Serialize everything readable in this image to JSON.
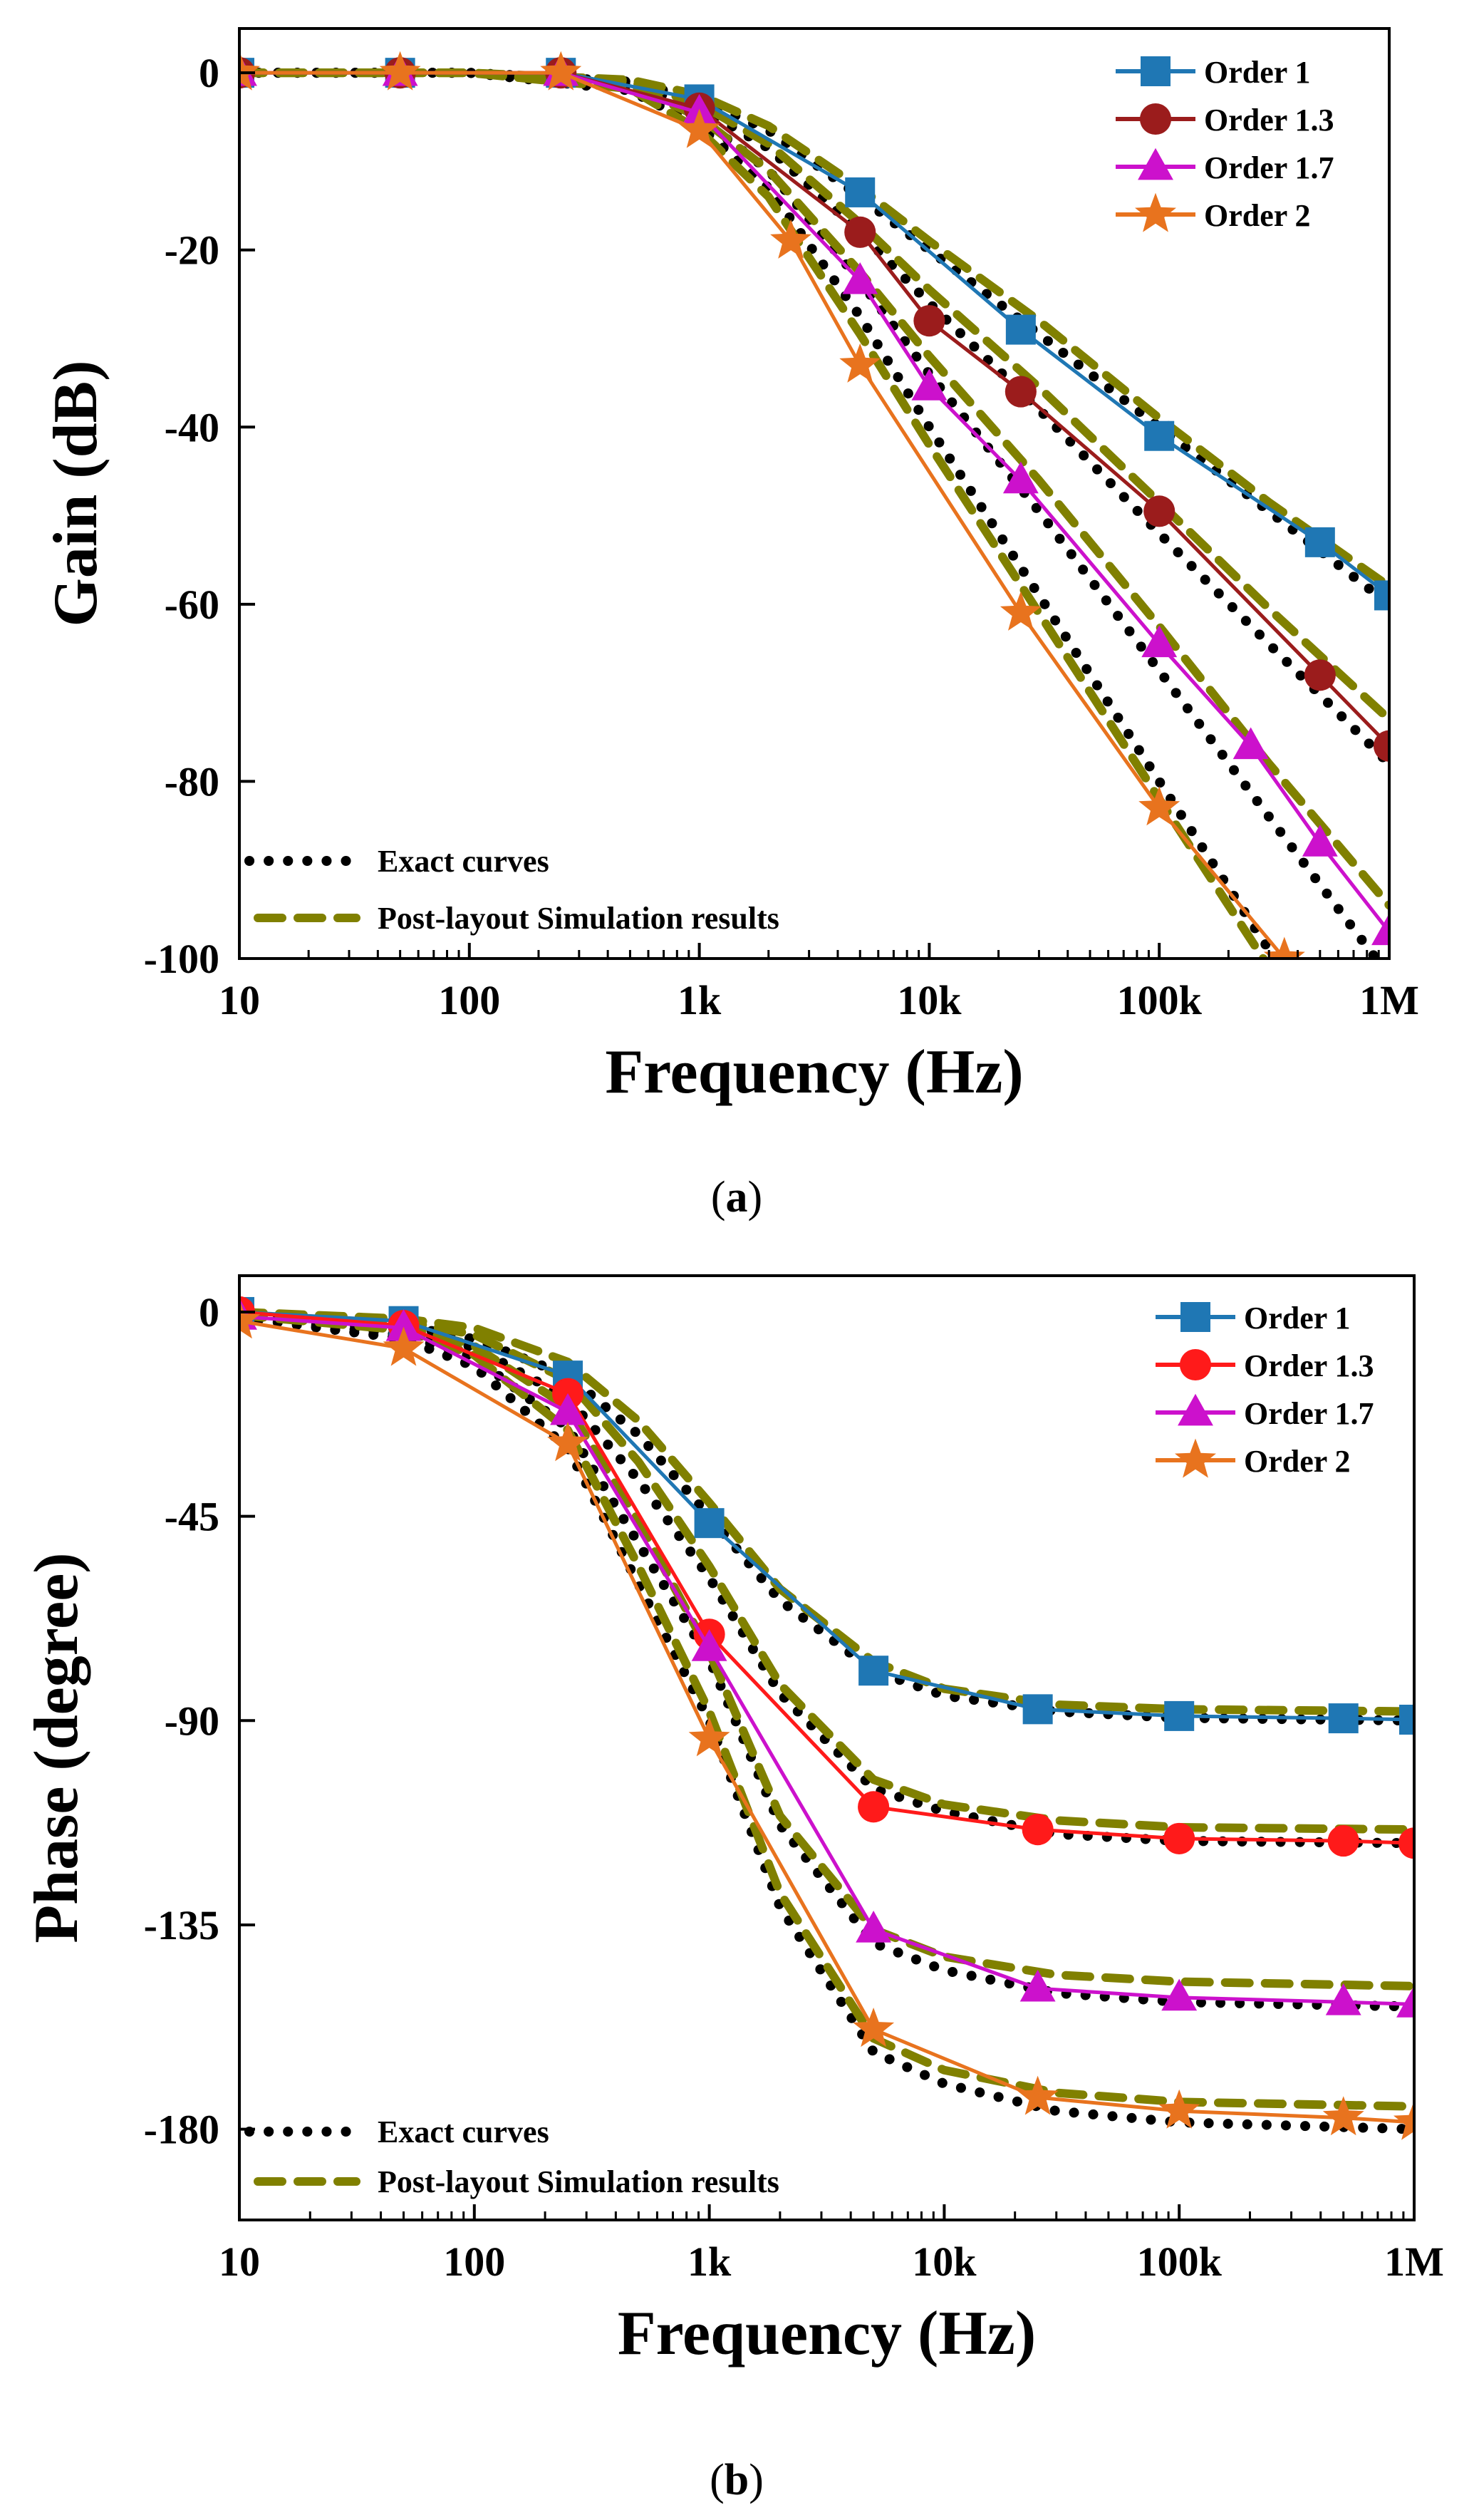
{
  "figure": {
    "caption_a_open": "(",
    "caption_a_letter": "a",
    "caption_a_close": ")",
    "caption_b_open": "(",
    "caption_b_letter": "b",
    "caption_b_close": ")"
  },
  "chart_data": [
    {
      "type": "line",
      "panel": "a",
      "xlabel": "Frequency (Hz)",
      "ylabel": "Gain (dB)",
      "xscale": "log",
      "xlim": [
        10,
        1000000
      ],
      "ylim": [
        -100,
        5
      ],
      "xticks": [
        {
          "value": 10,
          "label": "10"
        },
        {
          "value": 100,
          "label": "100"
        },
        {
          "value": 1000,
          "label": "1k"
        },
        {
          "value": 10000,
          "label": "10k"
        },
        {
          "value": 100000,
          "label": "100k"
        },
        {
          "value": 1000000,
          "label": "1M"
        }
      ],
      "yticks": [
        {
          "value": 0,
          "label": "0"
        },
        {
          "value": -20,
          "label": "-20"
        },
        {
          "value": -40,
          "label": "-40"
        },
        {
          "value": -60,
          "label": "-60"
        },
        {
          "value": -80,
          "label": "-80"
        },
        {
          "value": -100,
          "label": "-100"
        }
      ],
      "legend_position": "top-right",
      "legend2_position": "bottom-left",
      "series": [
        {
          "name": "Order 1",
          "color": "#1f77b4",
          "marker": "square",
          "x": [
            10,
            50,
            250,
            1000,
            5000,
            25000,
            100000,
            500000,
            1000000
          ],
          "y": [
            0,
            0,
            0,
            -3,
            -13.5,
            -29,
            -41,
            -53,
            -59
          ]
        },
        {
          "name": "Order 1.3",
          "color": "#9b1c1c",
          "marker": "circle",
          "x": [
            10,
            50,
            250,
            1000,
            5000,
            10000,
            25000,
            100000,
            500000,
            1000000
          ],
          "y": [
            0,
            0,
            0,
            -4,
            -18,
            -28,
            -36,
            -49.5,
            -68,
            -76
          ]
        },
        {
          "name": "Order 1.7",
          "color": "#cc11cc",
          "marker": "triangle",
          "x": [
            10,
            50,
            250,
            1000,
            5000,
            10000,
            25000,
            100000,
            250000,
            500000,
            1000000
          ],
          "y": [
            0,
            0,
            0,
            -4.5,
            -23.5,
            -35.5,
            -46,
            -64.5,
            -76,
            -87,
            -97
          ]
        },
        {
          "name": "Order 2",
          "color": "#e8731e",
          "marker": "star",
          "x": [
            10,
            50,
            250,
            1000,
            2500,
            5000,
            25000,
            100000,
            350000
          ],
          "y": [
            0,
            0,
            0,
            -6.5,
            -19,
            -33,
            -61,
            -83,
            -100
          ]
        }
      ],
      "reference_series": [
        {
          "name": "Exact curves",
          "style": "dotted",
          "color": "#000000",
          "curves": [
            {
              "x": [
                10,
                100,
                500,
                1000,
                2000,
                5000,
                10000,
                30000,
                100000,
                300000,
                1000000
              ],
              "y": [
                0,
                0,
                -1,
                -3,
                -6.5,
                -14,
                -20,
                -29.5,
                -40,
                -49.5,
                -60
              ]
            },
            {
              "x": [
                10,
                100,
                500,
                1000,
                2000,
                5000,
                10000,
                30000,
                100000,
                300000,
                1000000
              ],
              "y": [
                0,
                0,
                -1.3,
                -3.9,
                -8.5,
                -18,
                -26,
                -38,
                -52,
                -64.5,
                -78
              ]
            },
            {
              "x": [
                10,
                100,
                500,
                1000,
                2000,
                5000,
                10000,
                30000,
                100000,
                300000,
                1000000
              ],
              "y": [
                0,
                0,
                -1.7,
                -5.1,
                -11,
                -23.5,
                -34,
                -49.5,
                -67.5,
                -84,
                -102
              ]
            },
            {
              "x": [
                10,
                100,
                500,
                1000,
                2000,
                5000,
                10000,
                30000,
                100000,
                300000,
                1000000
              ],
              "y": [
                0,
                0,
                -2,
                -6,
                -13,
                -27.5,
                -40,
                -59,
                -80,
                -99,
                -120
              ]
            }
          ]
        },
        {
          "name": "Post-layout Simulation results",
          "style": "dashed",
          "color": "#808000",
          "curves": [
            {
              "x": [
                10,
                100,
                500,
                1000,
                2000,
                5000,
                10000,
                30000,
                100000,
                300000,
                1000000
              ],
              "y": [
                0,
                0,
                -0.8,
                -2.5,
                -6,
                -13,
                -19,
                -28,
                -39,
                -48.5,
                -58
              ]
            },
            {
              "x": [
                10,
                100,
                500,
                1000,
                2000,
                5000,
                10000,
                30000,
                100000,
                300000,
                1000000
              ],
              "y": [
                0,
                0,
                -1,
                -3.5,
                -8,
                -17,
                -24.5,
                -35.5,
                -48.5,
                -60.5,
                -73
              ]
            },
            {
              "x": [
                10,
                100,
                500,
                1000,
                2000,
                5000,
                10000,
                30000,
                100000,
                300000,
                1000000
              ],
              "y": [
                0,
                0,
                -1.4,
                -5,
                -11,
                -22.5,
                -32,
                -46,
                -62.5,
                -78,
                -94
              ]
            },
            {
              "x": [
                10,
                100,
                500,
                1000,
                2000,
                5000,
                10000,
                30000,
                100000,
                300000,
                1000000
              ],
              "y": [
                0,
                0,
                -1.8,
                -6.5,
                -14,
                -29.5,
                -42,
                -61,
                -82,
                -101,
                -122
              ]
            }
          ]
        }
      ]
    },
    {
      "type": "line",
      "panel": "b",
      "xlabel": "Frequency (Hz)",
      "ylabel": "Phase (degree)",
      "xscale": "log",
      "xlim": [
        10,
        1000000
      ],
      "ylim": [
        -200,
        8
      ],
      "xticks": [
        {
          "value": 10,
          "label": "10"
        },
        {
          "value": 100,
          "label": "100"
        },
        {
          "value": 1000,
          "label": "1k"
        },
        {
          "value": 10000,
          "label": "10k"
        },
        {
          "value": 100000,
          "label": "100k"
        },
        {
          "value": 1000000,
          "label": "1M"
        }
      ],
      "yticks": [
        {
          "value": 0,
          "label": "0"
        },
        {
          "value": -45,
          "label": "-45"
        },
        {
          "value": -90,
          "label": "-90"
        },
        {
          "value": -135,
          "label": "-135"
        },
        {
          "value": -180,
          "label": "-180"
        }
      ],
      "legend_position": "top-right",
      "legend2_position": "bottom-left",
      "series": [
        {
          "name": "Order 1",
          "color": "#1f77b4",
          "marker": "square",
          "x": [
            10,
            50,
            250,
            1000,
            5000,
            25000,
            100000,
            500000,
            1000000
          ],
          "y": [
            0,
            -2,
            -14,
            -46.5,
            -79,
            -87.5,
            -89,
            -89.5,
            -89.8
          ]
        },
        {
          "name": "Order 1.3",
          "color": "#ff1a1a",
          "marker": "circle",
          "x": [
            10,
            50,
            250,
            1000,
            5000,
            25000,
            100000,
            500000,
            1000000
          ],
          "y": [
            0,
            -3,
            -18,
            -71,
            -109,
            -114,
            -116,
            -116.5,
            -117
          ]
        },
        {
          "name": "Order 1.7",
          "color": "#cc11cc",
          "marker": "triangle",
          "x": [
            10,
            50,
            250,
            1000,
            5000,
            25000,
            100000,
            500000,
            1000000
          ],
          "y": [
            -1,
            -3.5,
            -22,
            -74,
            -136,
            -149,
            -151,
            -152,
            -152.5
          ]
        },
        {
          "name": "Order 2",
          "color": "#e8731e",
          "marker": "star",
          "x": [
            10,
            50,
            250,
            1000,
            5000,
            25000,
            100000,
            500000,
            1000000
          ],
          "y": [
            -2,
            -8,
            -29,
            -94,
            -158,
            -173,
            -176,
            -177.5,
            -178.5
          ]
        }
      ],
      "reference_series": [
        {
          "name": "Exact curves",
          "style": "dotted",
          "color": "#000000",
          "curves": [
            {
              "x": [
                10,
                50,
                100,
                250,
                500,
                1000,
                2000,
                5000,
                10000,
                30000,
                100000,
                1000000
              ],
              "y": [
                -0.6,
                -3,
                -6,
                -14,
                -27,
                -45,
                -63.5,
                -79,
                -84.5,
                -88,
                -89.4,
                -90
              ]
            },
            {
              "x": [
                10,
                50,
                100,
                250,
                500,
                1000,
                2000,
                5000,
                10000,
                30000,
                100000,
                1000000
              ],
              "y": [
                -0.8,
                -3.9,
                -7.8,
                -19,
                -37,
                -58.5,
                -84,
                -105,
                -110,
                -115,
                -116.5,
                -117
              ]
            },
            {
              "x": [
                10,
                50,
                100,
                250,
                500,
                1000,
                2000,
                5000,
                10000,
                30000,
                100000,
                1000000
              ],
              "y": [
                -1,
                -5.1,
                -10,
                -25.5,
                -51,
                -76.5,
                -113,
                -139,
                -145,
                -150,
                -152,
                -153
              ]
            },
            {
              "x": [
                10,
                50,
                100,
                250,
                500,
                1000,
                2000,
                5000,
                10000,
                30000,
                100000,
                1000000
              ],
              "y": [
                -1.2,
                -5.9,
                -12,
                -30,
                -60,
                -90,
                -131,
                -163,
                -170,
                -176,
                -178.5,
                -180
              ]
            }
          ]
        },
        {
          "name": "Post-layout Simulation results",
          "style": "dashed",
          "color": "#808000",
          "curves": [
            {
              "x": [
                10,
                50,
                100,
                250,
                500,
                1000,
                2000,
                5000,
                10000,
                30000,
                100000,
                1000000
              ],
              "y": [
                0,
                -1.5,
                -3.5,
                -11,
                -24,
                -42,
                -61,
                -77,
                -83,
                -86.5,
                -87.5,
                -88
              ]
            },
            {
              "x": [
                10,
                50,
                100,
                250,
                500,
                1000,
                2000,
                5000,
                10000,
                30000,
                100000,
                1000000
              ],
              "y": [
                -0.3,
                -2,
                -5,
                -15,
                -33,
                -56,
                -82,
                -103,
                -108.5,
                -112,
                -113.5,
                -114
              ]
            },
            {
              "x": [
                10,
                50,
                100,
                250,
                500,
                1000,
                2000,
                5000,
                10000,
                30000,
                100000,
                1000000
              ],
              "y": [
                -0.5,
                -3,
                -7.5,
                -21,
                -46,
                -75,
                -111,
                -136,
                -142,
                -146,
                -147.5,
                -148.5
              ]
            },
            {
              "x": [
                10,
                50,
                100,
                250,
                500,
                1000,
                2000,
                5000,
                10000,
                30000,
                100000,
                1000000
              ],
              "y": [
                -0.7,
                -4,
                -9.5,
                -26,
                -56,
                -88,
                -128,
                -160,
                -167,
                -172,
                -174,
                -175
              ]
            }
          ]
        }
      ]
    }
  ]
}
